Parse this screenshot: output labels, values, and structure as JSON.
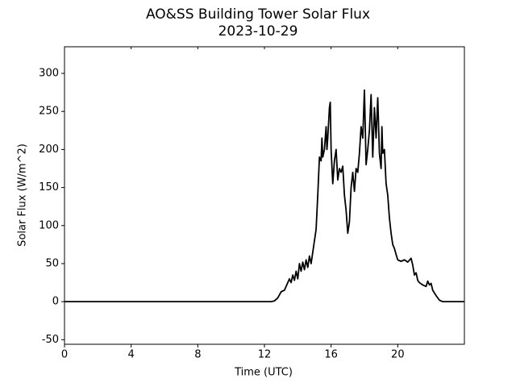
{
  "chart_data": {
    "type": "line",
    "title": "AO&SS Building Tower Solar Flux",
    "subtitle": "2023-10-29",
    "xlabel": "Time (UTC)",
    "ylabel": "Solar Flux (W/m^2)",
    "color": "#000000",
    "xlim": [
      0,
      24
    ],
    "ylim": [
      -56,
      335
    ],
    "xticks": [
      0,
      4,
      8,
      12,
      16,
      20
    ],
    "yticks": [
      -50,
      0,
      50,
      100,
      150,
      200,
      250,
      300
    ],
    "x": [
      0,
      12.4,
      12.6,
      12.8,
      13.0,
      13.2,
      13.3,
      13.5,
      13.6,
      13.7,
      13.8,
      13.9,
      14.0,
      14.1,
      14.2,
      14.3,
      14.4,
      14.5,
      14.6,
      14.7,
      14.8,
      14.9,
      15.0,
      15.1,
      15.2,
      15.3,
      15.4,
      15.45,
      15.5,
      15.6,
      15.7,
      15.75,
      15.8,
      15.9,
      15.95,
      16.0,
      16.1,
      16.2,
      16.3,
      16.4,
      16.5,
      16.6,
      16.7,
      16.8,
      16.9,
      17.0,
      17.1,
      17.2,
      17.3,
      17.4,
      17.5,
      17.6,
      17.7,
      17.8,
      17.9,
      18.0,
      18.1,
      18.2,
      18.3,
      18.4,
      18.5,
      18.6,
      18.7,
      18.8,
      18.9,
      19.0,
      19.05,
      19.1,
      19.2,
      19.3,
      19.4,
      19.5,
      19.6,
      19.7,
      19.8,
      19.9,
      20.0,
      20.2,
      20.4,
      20.6,
      20.8,
      20.9,
      21.0,
      21.1,
      21.2,
      21.3,
      21.5,
      21.7,
      21.8,
      21.9,
      22.0,
      22.1,
      22.3,
      22.5,
      22.7,
      24
    ],
    "values": [
      0,
      0,
      1,
      5,
      13,
      15,
      20,
      30,
      25,
      35,
      28,
      40,
      30,
      50,
      40,
      52,
      42,
      55,
      45,
      60,
      50,
      65,
      80,
      95,
      140,
      190,
      185,
      215,
      190,
      200,
      230,
      200,
      215,
      255,
      262,
      200,
      155,
      185,
      200,
      160,
      175,
      170,
      178,
      140,
      120,
      90,
      105,
      150,
      170,
      145,
      175,
      170,
      195,
      230,
      215,
      278,
      180,
      200,
      225,
      272,
      190,
      255,
      215,
      268,
      195,
      175,
      230,
      195,
      200,
      155,
      140,
      110,
      90,
      75,
      70,
      62,
      55,
      53,
      55,
      52,
      57,
      48,
      35,
      38,
      28,
      25,
      22,
      20,
      27,
      22,
      24,
      15,
      8,
      2,
      0,
      0
    ]
  }
}
